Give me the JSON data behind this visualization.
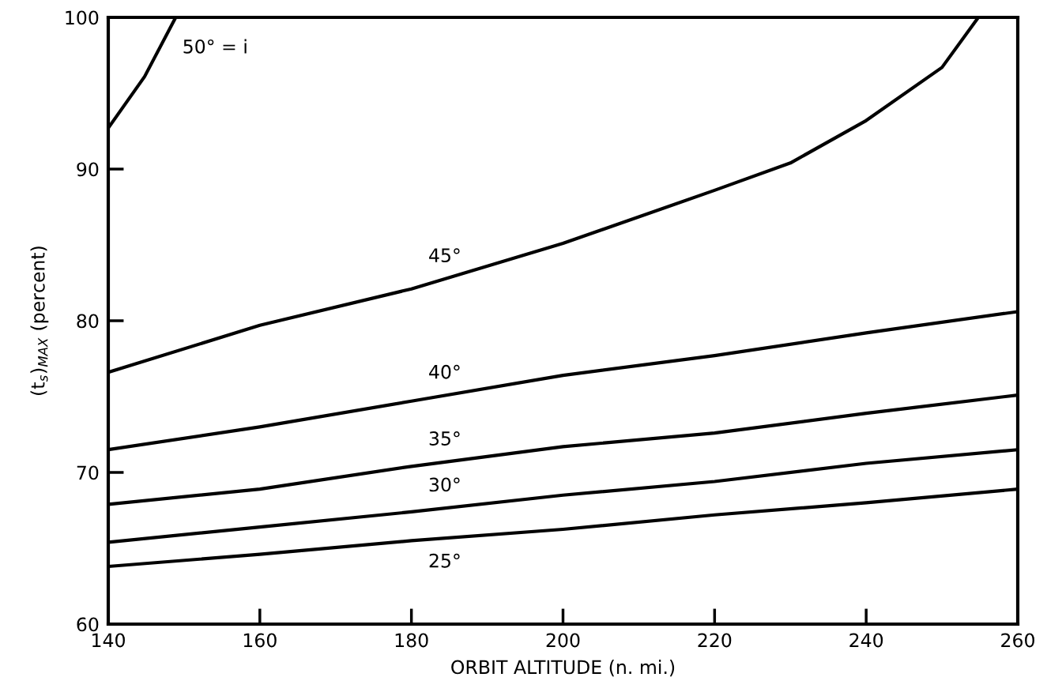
{
  "chart_data": {
    "type": "line",
    "xlabel": "ORBIT ALTITUDE (n. mi.)",
    "ylabel": "(t$_{s}$)$_{MAX}$ (percent)",
    "xlim": [
      140,
      260
    ],
    "ylim": [
      60,
      100
    ],
    "xticks": [
      140,
      160,
      180,
      200,
      220,
      240,
      260
    ],
    "yticks": [
      60,
      70,
      80,
      90,
      100
    ],
    "grid": false,
    "legend": false,
    "marker": "none",
    "line_style": "solid",
    "series": [
      {
        "name": "50° = i",
        "color": "#000000",
        "x": [
          140,
          144.8,
          148.9
        ],
        "values": [
          92.7,
          96.1,
          100
        ]
      },
      {
        "name": "45°",
        "color": "#000000",
        "x": [
          140,
          160,
          180,
          200,
          220,
          230,
          240,
          250,
          254.8
        ],
        "values": [
          76.6,
          79.7,
          82.1,
          85.1,
          88.6,
          90.4,
          93.2,
          96.7,
          100
        ]
      },
      {
        "name": "40°",
        "color": "#000000",
        "x": [
          140,
          160,
          180,
          200,
          220,
          240,
          260
        ],
        "values": [
          71.5,
          73.0,
          74.7,
          76.4,
          77.7,
          79.2,
          80.6
        ]
      },
      {
        "name": "35°",
        "color": "#000000",
        "x": [
          140,
          160,
          180,
          200,
          220,
          240,
          260
        ],
        "values": [
          67.9,
          68.9,
          70.4,
          71.7,
          72.6,
          73.9,
          75.1
        ]
      },
      {
        "name": "30°",
        "color": "#000000",
        "x": [
          140,
          160,
          180,
          200,
          220,
          240,
          260
        ],
        "values": [
          65.4,
          66.4,
          67.4,
          68.5,
          69.4,
          70.6,
          71.5
        ]
      },
      {
        "name": "25°",
        "color": "#000000",
        "x": [
          140,
          160,
          180,
          200,
          220,
          240,
          260
        ],
        "values": [
          63.8,
          64.6,
          65.5,
          66.25,
          67.2,
          68.0,
          68.9
        ]
      }
    ]
  }
}
